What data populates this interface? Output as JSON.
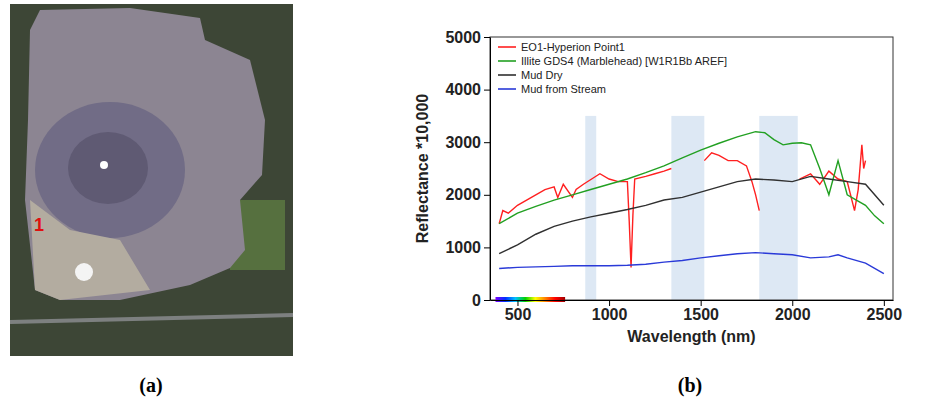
{
  "panels": {
    "a": {
      "label": "(a)",
      "point_label": "1"
    },
    "b": {
      "label": "(b)"
    }
  },
  "chart_data": {
    "type": "line",
    "x_label": "Wavelength (nm)",
    "y_label": "Reflectance *10,000",
    "xlim": [
      350,
      2550
    ],
    "xticks": [
      500,
      1000,
      1500,
      2000,
      2500
    ],
    "ylim": [
      0,
      5000
    ],
    "yticks": [
      0,
      1000,
      2000,
      3000,
      4000,
      5000
    ],
    "grid": false,
    "legend": "upper left",
    "visible_range": [
      380,
      760
    ],
    "shaded_ranges": [
      {
        "x": [
          870,
          930
        ],
        "y": [
          0,
          3500
        ]
      },
      {
        "x": [
          1340,
          1520
        ],
        "y": [
          0,
          3500
        ]
      },
      {
        "x": [
          1820,
          2030
        ],
        "y": [
          0,
          3500
        ]
      }
    ],
    "series": [
      {
        "name": "EO1-Hyperion Point1",
        "color": "#ff2020",
        "marker": "none",
        "x": [
          400,
          420,
          450,
          500,
          550,
          600,
          650,
          700,
          720,
          750,
          800,
          820,
          860,
          950,
          1000,
          1050,
          1100,
          1110,
          1120,
          1130,
          1140,
          1200,
          1250,
          1300,
          1340,
          1400,
          1520,
          1560,
          1600,
          1650,
          1700,
          1750,
          1780,
          1800,
          1820,
          1900,
          2040,
          2100,
          2150,
          2200,
          2250,
          2300,
          2340,
          2360,
          2380,
          2390,
          2400
        ],
        "values": [
          1450,
          1700,
          1650,
          1800,
          1900,
          2000,
          2100,
          2150,
          1950,
          2200,
          1950,
          2100,
          2200,
          2400,
          2300,
          2250,
          2250,
          1500,
          620,
          1600,
          2300,
          2350,
          2400,
          2450,
          2500,
          null,
          2650,
          2800,
          2750,
          2650,
          2650,
          2550,
          2250,
          2000,
          1700,
          null,
          2300,
          2400,
          2200,
          2450,
          2300,
          2250,
          1700,
          2100,
          2950,
          2500,
          2650
        ]
      },
      {
        "name": "Illite GDS4 (Marblehead) [W1R1Bb AREF]",
        "color": "#22a022",
        "x": [
          400,
          500,
          600,
          700,
          800,
          900,
          1000,
          1100,
          1200,
          1300,
          1400,
          1500,
          1600,
          1700,
          1800,
          1850,
          1900,
          1950,
          2000,
          2050,
          2100,
          2150,
          2200,
          2250,
          2300,
          2350,
          2400,
          2450,
          2500
        ],
        "values": [
          1450,
          1650,
          1780,
          1900,
          2000,
          2100,
          2200,
          2300,
          2420,
          2550,
          2700,
          2850,
          2980,
          3100,
          3200,
          3180,
          3050,
          2950,
          2980,
          2990,
          2950,
          2500,
          2000,
          2650,
          2000,
          1900,
          1800,
          1600,
          1450
        ]
      },
      {
        "name": "Mud Dry",
        "color": "#303030",
        "x": [
          400,
          500,
          600,
          700,
          800,
          900,
          1000,
          1100,
          1200,
          1300,
          1400,
          1500,
          1600,
          1700,
          1800,
          1900,
          2000,
          2100,
          2200,
          2300,
          2400,
          2500
        ],
        "values": [
          880,
          1050,
          1250,
          1400,
          1500,
          1580,
          1650,
          1720,
          1800,
          1900,
          1950,
          2050,
          2150,
          2250,
          2300,
          2280,
          2250,
          2350,
          2300,
          2250,
          2200,
          1800
        ]
      },
      {
        "name": "Mud from Stream",
        "color": "#2a3ad8",
        "x": [
          400,
          500,
          600,
          700,
          800,
          900,
          1000,
          1100,
          1200,
          1300,
          1400,
          1500,
          1600,
          1700,
          1800,
          1900,
          2000,
          2100,
          2200,
          2250,
          2300,
          2400,
          2500
        ],
        "values": [
          600,
          620,
          630,
          640,
          650,
          650,
          650,
          660,
          680,
          720,
          750,
          800,
          840,
          880,
          900,
          880,
          860,
          800,
          820,
          860,
          800,
          700,
          500
        ]
      }
    ]
  }
}
